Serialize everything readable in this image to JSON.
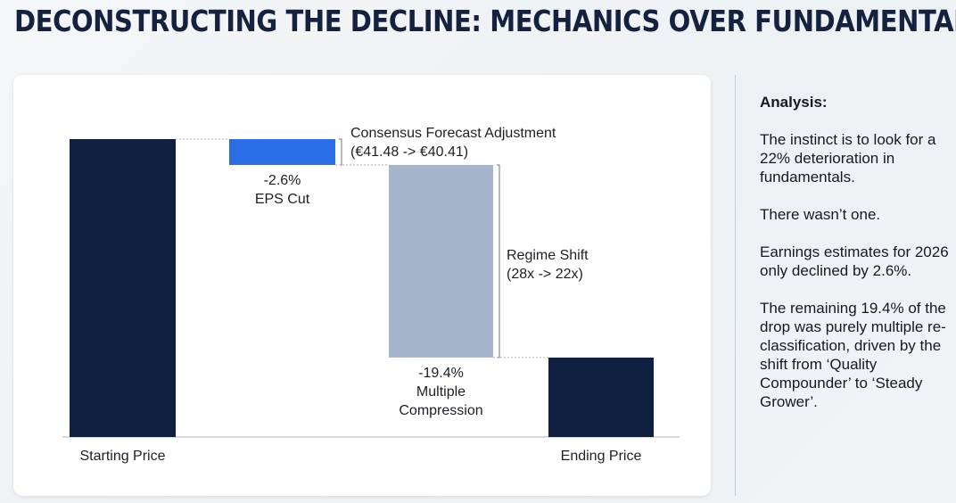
{
  "page_title": "DECONSTRUCTING THE DECLINE: MECHANICS OVER FUNDAMENTALS",
  "analysis": {
    "heading": "Analysis:",
    "paragraphs": [
      "The instinct is to look for a 22% deterioration in fundamentals.",
      "There wasn’t one.",
      "Earnings estimates for 2026 only declined by 2.6%.",
      "The remaining 19.4% of the drop was purely multiple re-classification, driven by the shift from ‘Quality Compounder’ to ‘Steady Grower’."
    ]
  },
  "chart_data": {
    "type": "waterfall",
    "start_value": 100,
    "steps": [
      {
        "label_value": "-2.6%",
        "label_text": "EPS Cut",
        "change": -2.6,
        "color": "#2a6de5",
        "annotation": [
          "Consensus Forecast Adjustment",
          "(€41.48 -> €40.41)"
        ]
      },
      {
        "label_value": "-19.4%",
        "label_text": [
          "Multiple",
          "Compression"
        ],
        "change": -19.4,
        "color": "#a5b6cc",
        "annotation": [
          "Regime Shift",
          "(28x -> 22x)"
        ]
      }
    ],
    "start_label": "Starting Price",
    "end_label": "Ending Price",
    "end_value": 78,
    "total_color": "#0e1f3f",
    "connector_color": "#a9aeb5",
    "baseline_color": "#c9ccd1"
  }
}
